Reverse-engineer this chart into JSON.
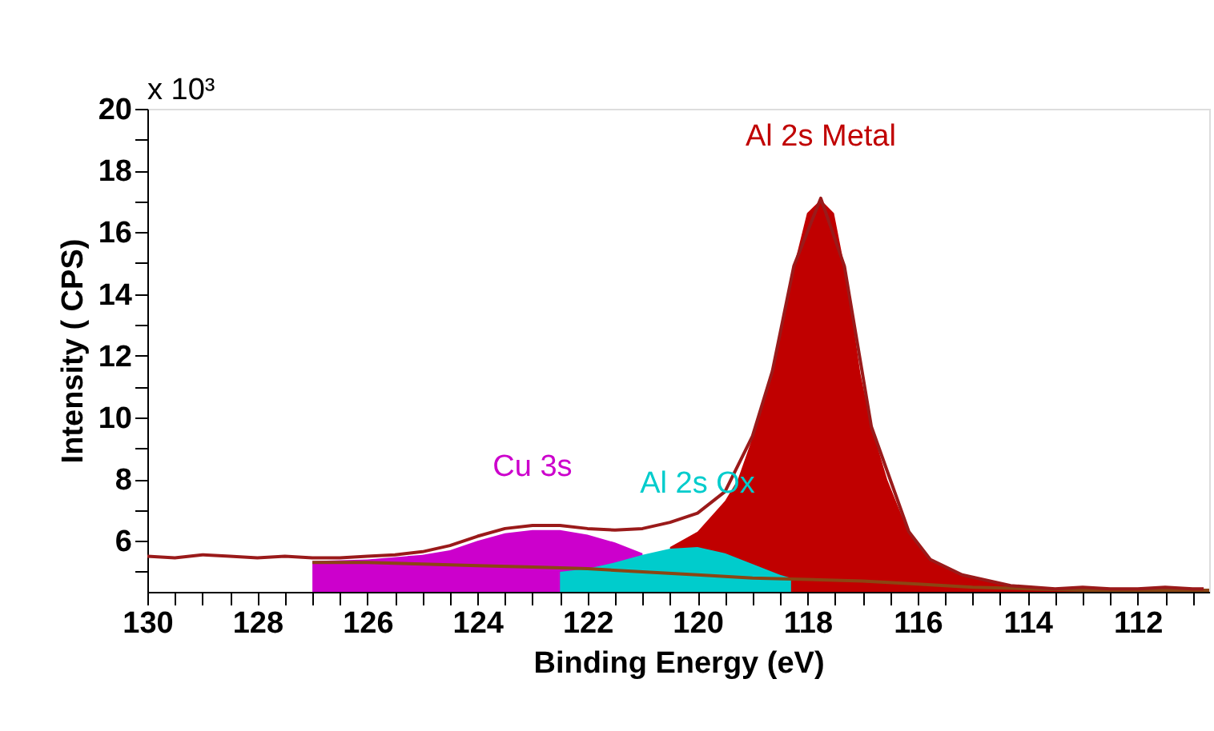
{
  "chart_data": {
    "type": "area",
    "xlabel": "Binding Energy (eV)",
    "ylabel": "Intensity ( CPS)",
    "annotations": [
      "x 10³"
    ],
    "xlim": [
      130,
      110.7
    ],
    "ylim": [
      4.35,
      20
    ],
    "xticks": [
      130,
      {
        "value": 129.5,
        "label": null
      },
      {
        "value": 129,
        "label": null
      },
      {
        "value": 128.5,
        "label": null
      },
      128,
      {
        "value": 127.5,
        "label": null
      },
      {
        "value": 127,
        "label": null
      },
      {
        "value": 126.5,
        "label": null
      },
      126,
      {
        "value": 125.5,
        "label": null
      },
      {
        "value": 125,
        "label": null
      },
      {
        "value": 124.5,
        "label": null
      },
      124,
      {
        "value": 123.5,
        "label": null
      },
      {
        "value": 123,
        "label": null
      },
      {
        "value": 122.5,
        "label": null
      },
      122,
      {
        "value": 121.5,
        "label": null
      },
      {
        "value": 121,
        "label": null
      },
      {
        "value": 120.5,
        "label": null
      },
      120,
      {
        "value": 119.5,
        "label": null
      },
      {
        "value": 119,
        "label": null
      },
      {
        "value": 118.5,
        "label": null
      },
      118,
      {
        "value": 117.5,
        "label": null
      },
      {
        "value": 117,
        "label": null
      },
      {
        "value": 116.5,
        "label": null
      },
      116,
      {
        "value": 115.5,
        "label": null
      },
      {
        "value": 115,
        "label": null
      },
      {
        "value": 114.5,
        "label": null
      },
      114,
      {
        "value": 113.5,
        "label": null
      },
      {
        "value": 113,
        "label": null
      },
      {
        "value": 112.5,
        "label": null
      },
      112,
      {
        "value": 111.5,
        "label": null
      },
      {
        "value": 111,
        "label": null
      }
    ],
    "yticks": [
      {
        "value": 5,
        "label": null
      },
      6,
      {
        "value": 7,
        "label": null
      },
      8,
      {
        "value": 9,
        "label": null
      },
      10,
      {
        "value": 11,
        "label": null
      },
      12,
      {
        "value": 13,
        "label": null
      },
      14,
      {
        "value": 15,
        "label": null
      },
      16,
      {
        "value": 17,
        "label": null
      },
      18,
      {
        "value": 19,
        "label": null
      },
      20
    ],
    "grid": false,
    "legend": false,
    "series": [
      {
        "name": "Al 2s Metal",
        "color": "#c00000",
        "x": [
          120.5,
          120,
          119.5,
          119.27,
          118.93,
          118.64,
          118.45,
          118.25,
          118.01,
          117.76,
          117.52,
          117.33,
          117.18,
          117.04,
          116.84,
          116.55,
          116.16,
          115.77,
          115.19,
          114.31,
          113.34,
          112,
          110.7
        ],
        "values": [
          5.8,
          6.3,
          7.3,
          7.98,
          9.7,
          11.43,
          13.16,
          14.89,
          16.62,
          17.05,
          16.62,
          14.89,
          13.16,
          11.43,
          9.7,
          7.98,
          6.25,
          5.39,
          4.87,
          4.52,
          4.42,
          4.4,
          4.4
        ]
      },
      {
        "name": "Cu 3s",
        "color": "#cc00cc",
        "x": [
          127,
          126,
          125,
          124.5,
          124,
          123.5,
          123,
          122.5,
          122,
          121.5,
          121
        ],
        "values": [
          5.35,
          5.4,
          5.55,
          5.7,
          6.0,
          6.25,
          6.35,
          6.35,
          6.2,
          5.95,
          5.6
        ]
      },
      {
        "name": "Al 2s Ox",
        "color": "#00cccc",
        "x": [
          122.5,
          122,
          121.5,
          121,
          120.5,
          120,
          119.5,
          119,
          118.5,
          118.3
        ],
        "values": [
          5.0,
          5.1,
          5.3,
          5.55,
          5.75,
          5.8,
          5.6,
          5.25,
          4.9,
          4.8
        ]
      },
      {
        "type": "line",
        "color": "#8b4513",
        "x": [
          127,
          126,
          125,
          124,
          123,
          122,
          121,
          120,
          119,
          118,
          117,
          116,
          115,
          114,
          113,
          112,
          110.7
        ],
        "values": [
          5.3,
          5.3,
          5.25,
          5.2,
          5.15,
          5.1,
          5.0,
          4.9,
          4.8,
          4.75,
          4.7,
          4.6,
          4.5,
          4.45,
          4.4,
          4.4,
          4.4
        ]
      },
      {
        "type": "line",
        "color": "#9a1a1a",
        "x": [
          130,
          129.5,
          129,
          128.5,
          128,
          127.5,
          127,
          126.5,
          126,
          125.5,
          125,
          124.5,
          124,
          123.5,
          123,
          122.5,
          122,
          121.5,
          121,
          120.5,
          120,
          119.5,
          119,
          118.64,
          118.25,
          117.76,
          117.33,
          116.84,
          116.16,
          115.77,
          115.19,
          114.31,
          113.5,
          113,
          112.5,
          112,
          111.5,
          111,
          110.8
        ],
        "values": [
          5.5,
          5.45,
          5.55,
          5.5,
          5.45,
          5.5,
          5.45,
          5.45,
          5.5,
          5.55,
          5.65,
          5.85,
          6.15,
          6.4,
          6.5,
          6.5,
          6.4,
          6.35,
          6.4,
          6.6,
          6.9,
          7.6,
          9.4,
          11.5,
          14.9,
          17.1,
          14.9,
          9.7,
          6.3,
          5.4,
          4.9,
          4.55,
          4.45,
          4.5,
          4.45,
          4.45,
          4.5,
          4.45,
          4.45
        ]
      }
    ]
  }
}
